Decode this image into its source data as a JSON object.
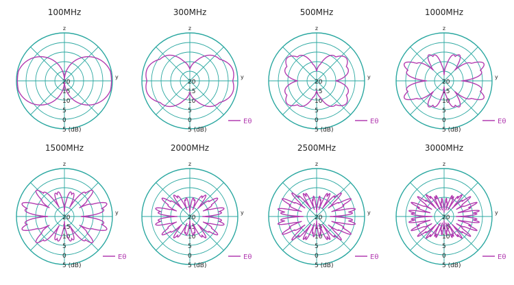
{
  "colors": {
    "grid": "#2aa7a0",
    "trace": "#b23bb0",
    "text": "#222222"
  },
  "chart_data": [
    {
      "type": "polar",
      "title": "100MHz",
      "axis_top": "z",
      "axis_right": "y",
      "r_ticks": [
        "20",
        "15",
        "10",
        "5",
        "0",
        "5 (dB)"
      ],
      "legend": "Eθ",
      "legend_shown": false,
      "pattern": {
        "base": 0.02,
        "amp": 1.0,
        "lobes": 1,
        "ripple": 0.0,
        "rippleFreq": 0
      }
    },
    {
      "type": "polar",
      "title": "300MHz",
      "axis_top": "z",
      "axis_right": "y",
      "r_ticks": [
        "20",
        "15",
        "10",
        "5",
        "0",
        "5 (dB)"
      ],
      "legend": "Eθ",
      "legend_shown": true,
      "pattern": {
        "base": 0.25,
        "amp": 0.72,
        "lobes": 1,
        "ripple": 0.06,
        "rippleFreq": 5
      }
    },
    {
      "type": "polar",
      "title": "500MHz",
      "axis_top": "z",
      "axis_right": "y",
      "r_ticks": [
        "20",
        "15",
        "10",
        "5",
        "0",
        "5 (dB)"
      ],
      "legend": "Eθ",
      "legend_shown": true,
      "pattern": {
        "base": 0.2,
        "amp": 0.7,
        "lobes": 2,
        "ripple": 0.1,
        "rippleFreq": 7
      }
    },
    {
      "type": "polar",
      "title": "1000MHz",
      "axis_top": "z",
      "axis_right": "y",
      "r_ticks": [
        "20",
        "15",
        "10",
        "5",
        "0",
        "5 (dB)"
      ],
      "legend": "Eθ",
      "legend_shown": true,
      "pattern": {
        "base": 0.12,
        "amp": 0.85,
        "lobes": 4,
        "ripple": 0.12,
        "rippleFreq": 11
      }
    },
    {
      "type": "polar",
      "title": "1500MHz",
      "axis_top": "z",
      "axis_right": "y",
      "r_ticks": [
        "20",
        "15",
        "10",
        "5",
        "0",
        "5 (dB)"
      ],
      "legend": "Eθ",
      "legend_shown": true,
      "pattern": {
        "base": 0.1,
        "amp": 0.88,
        "lobes": 6,
        "ripple": 0.14,
        "rippleFreq": 15
      }
    },
    {
      "type": "polar",
      "title": "2000MHz",
      "axis_top": "z",
      "axis_right": "y",
      "r_ticks": [
        "20",
        "15",
        "10",
        "5",
        "0",
        "5 (dB)"
      ],
      "legend": "Eθ",
      "legend_shown": true,
      "pattern": {
        "base": 0.08,
        "amp": 0.7,
        "lobes": 8,
        "ripple": 0.18,
        "rippleFreq": 19
      }
    },
    {
      "type": "polar",
      "title": "2500MHz",
      "axis_top": "z",
      "axis_right": "y",
      "r_ticks": [
        "20",
        "15",
        "10",
        "5",
        "0",
        "5 (dB)"
      ],
      "legend": "Eθ",
      "legend_shown": true,
      "pattern": {
        "base": 0.08,
        "amp": 0.8,
        "lobes": 10,
        "ripple": 0.22,
        "rippleFreq": 23
      }
    },
    {
      "type": "polar",
      "title": "3000MHz",
      "axis_top": "z",
      "axis_right": "y",
      "r_ticks": [
        "20",
        "15",
        "10",
        "5",
        "0",
        "5 (dB)"
      ],
      "legend": "Eθ",
      "legend_shown": true,
      "pattern": {
        "base": 0.08,
        "amp": 0.72,
        "lobes": 12,
        "ripple": 0.24,
        "rippleFreq": 27
      }
    }
  ]
}
